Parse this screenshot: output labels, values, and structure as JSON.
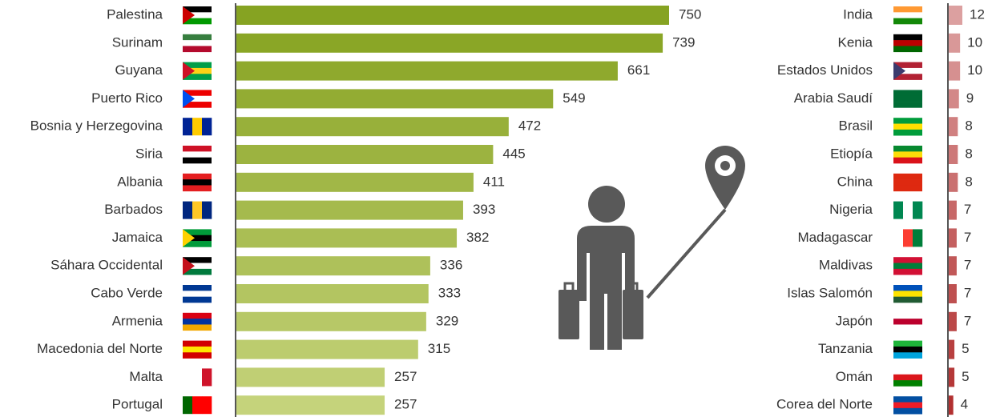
{
  "chart_data": [
    {
      "type": "bar",
      "orientation": "horizontal",
      "categories": [
        "Palestina",
        "Surinam",
        "Guyana",
        "Puerto Rico",
        "Bosnia y Herzegovina",
        "Siria",
        "Albania",
        "Barbados",
        "Jamaica",
        "Sáhara Occidental",
        "Cabo Verde",
        "Armenia",
        "Macedonia del Norte",
        "Malta",
        "Portugal"
      ],
      "values": [
        750,
        739,
        661,
        549,
        472,
        445,
        411,
        393,
        382,
        336,
        333,
        329,
        315,
        257,
        257
      ],
      "colors": [
        "#86a322",
        "#8aa626",
        "#8fa92d",
        "#93ac33",
        "#98b03a",
        "#9cb340",
        "#a1b747",
        "#a5ba4d",
        "#aabe54",
        "#aec15a",
        "#b3c561",
        "#b7c867",
        "#bccc6e",
        "#c0cf74",
        "#c5d37b"
      ]
    },
    {
      "type": "bar",
      "orientation": "horizontal",
      "categories": [
        "India",
        "Kenia",
        "Estados Unidos",
        "Arabia Saudí",
        "Brasil",
        "Etiopía",
        "China",
        "Nigeria",
        "Madagascar",
        "Maldivas",
        "Islas Salomón",
        "Japón",
        "Tanzania",
        "Omán",
        "Corea del Norte"
      ],
      "values": [
        12,
        10,
        10,
        9,
        8,
        8,
        8,
        7,
        7,
        7,
        7,
        7,
        5,
        5,
        4
      ],
      "colors": [
        "#dca0a0",
        "#d99898",
        "#d69090",
        "#d38888",
        "#d08080",
        "#cd7878",
        "#ca7070",
        "#c76868",
        "#c46060",
        "#c15858",
        "#be5050",
        "#bb4848",
        "#b84040",
        "#b53838",
        "#b23030"
      ]
    }
  ]
}
